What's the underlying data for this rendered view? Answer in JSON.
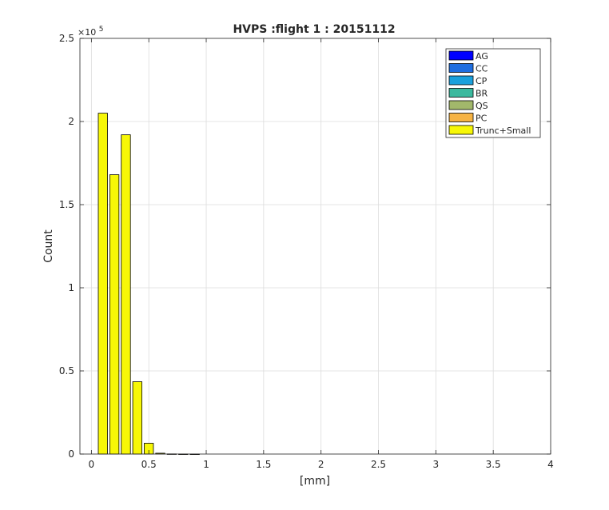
{
  "chart_data": {
    "type": "bar",
    "stacked": true,
    "title": "HVPS :flight 1 : 20151112",
    "xlabel": "[mm]",
    "ylabel": "Count",
    "exponent_label": "×10",
    "exponent_power": "5",
    "xlim": [
      -0.1,
      4
    ],
    "ylim": [
      0,
      250000
    ],
    "bar_width": 0.08,
    "grid": true,
    "legend_position": "top-right",
    "x": [
      0.1,
      0.2,
      0.3,
      0.4,
      0.5,
      0.6,
      0.7,
      0.8,
      0.9,
      1.0
    ],
    "series": [
      {
        "name": "AG",
        "color": "#0000ff",
        "values": [
          0,
          0,
          0,
          0,
          0,
          0,
          0,
          0,
          0,
          0
        ]
      },
      {
        "name": "CC",
        "color": "#1f6ee0",
        "values": [
          0,
          0,
          0,
          0,
          0,
          0,
          0,
          0,
          0,
          0
        ]
      },
      {
        "name": "CP",
        "color": "#1aa0dc",
        "values": [
          0,
          0,
          0,
          0,
          0,
          0,
          0,
          0,
          0,
          0
        ]
      },
      {
        "name": "BR",
        "color": "#3bb99e",
        "values": [
          0,
          0,
          0,
          0,
          0,
          0,
          0,
          0,
          0,
          0
        ]
      },
      {
        "name": "QS",
        "color": "#a2b86b",
        "values": [
          0,
          0,
          0,
          0,
          0,
          0,
          0,
          0,
          0,
          0
        ]
      },
      {
        "name": "PC",
        "color": "#f6b343",
        "values": [
          0,
          0,
          0,
          0,
          0,
          0,
          0,
          0,
          0,
          0
        ]
      },
      {
        "name": "Trunc+Small",
        "color": "#f7f707",
        "values": [
          205000,
          168000,
          192000,
          43500,
          6500,
          500,
          80,
          20,
          5,
          0
        ]
      }
    ],
    "xticks": [
      {
        "value": 0,
        "label": "0"
      },
      {
        "value": 0.5,
        "label": "0.5"
      },
      {
        "value": 1,
        "label": "1"
      },
      {
        "value": 1.5,
        "label": "1.5"
      },
      {
        "value": 2,
        "label": "2"
      },
      {
        "value": 2.5,
        "label": "2.5"
      },
      {
        "value": 3,
        "label": "3"
      },
      {
        "value": 3.5,
        "label": "3.5"
      },
      {
        "value": 4,
        "label": "4"
      }
    ],
    "yticks": [
      {
        "value": 0,
        "label": "0"
      },
      {
        "value": 50000,
        "label": "0.5"
      },
      {
        "value": 100000,
        "label": "1"
      },
      {
        "value": 150000,
        "label": "1.5"
      },
      {
        "value": 200000,
        "label": "2"
      },
      {
        "value": 250000,
        "label": "2.5"
      }
    ]
  }
}
